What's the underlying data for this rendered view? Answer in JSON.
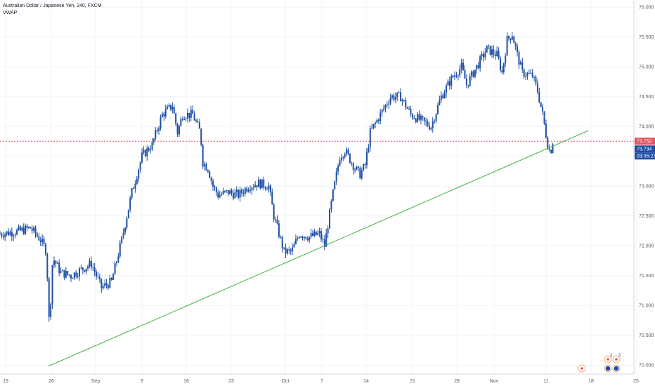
{
  "header": {
    "symbol_title": "Australian Dollar / Japanese Yen, 240, FXCM",
    "indicator": "VWAP"
  },
  "colors": {
    "candle": "#1e4fa3",
    "trendline": "#3fae3f",
    "price_line": "#e05560",
    "badge_red": "#e05560",
    "badge_blue": "#1e4fa3",
    "grid": "#f0f3fa",
    "axis_text": "#555a66"
  },
  "price_badges": {
    "last_price": "73.752",
    "vwap": "73.734",
    "countdown": "03:35:27"
  },
  "events": {
    "icons": [
      "flag-event-icon",
      "flag-event-icon",
      "flag-event-icon",
      "globe-event-icon",
      "globe-event-icon"
    ],
    "counts": [
      "3",
      "3"
    ]
  },
  "chart_data": {
    "type": "candlestick",
    "title": "Australian Dollar / Japanese Yen, 240, FXCM",
    "y_ticks": [
      "76.000",
      "75.500",
      "75.000",
      "74.500",
      "74.000",
      "73.500",
      "73.000",
      "72.500",
      "72.000",
      "71.500",
      "71.000",
      "70.500",
      "70.000"
    ],
    "ylim": [
      69.85,
      76.12
    ],
    "x_ticks": [
      "19",
      "26",
      "Sep",
      "9",
      "16",
      "23",
      "Oct",
      "7",
      "14",
      "21",
      "28",
      "Nov",
      "11",
      "18",
      "25"
    ],
    "series": [
      {
        "name": "AUDJPY",
        "price_path": [
          {
            "x": 0,
            "y": 72.2
          },
          {
            "x": 4,
            "y": 72.25
          },
          {
            "x": 6,
            "y": 72.3
          },
          {
            "x": 8,
            "y": 72.1
          },
          {
            "x": 9.2,
            "y": 71.9
          },
          {
            "x": 9.6,
            "y": 70.7
          },
          {
            "x": 10,
            "y": 71.1
          },
          {
            "x": 10.4,
            "y": 71.8
          },
          {
            "x": 12,
            "y": 71.55
          },
          {
            "x": 14,
            "y": 71.5
          },
          {
            "x": 16,
            "y": 71.6
          },
          {
            "x": 18,
            "y": 71.7
          },
          {
            "x": 20,
            "y": 71.3
          },
          {
            "x": 22,
            "y": 71.4
          },
          {
            "x": 24,
            "y": 72.1
          },
          {
            "x": 26,
            "y": 72.9
          },
          {
            "x": 28,
            "y": 73.5
          },
          {
            "x": 30,
            "y": 73.7
          },
          {
            "x": 32,
            "y": 74.2
          },
          {
            "x": 34,
            "y": 74.35
          },
          {
            "x": 35,
            "y": 73.9
          },
          {
            "x": 36,
            "y": 74.2
          },
          {
            "x": 38,
            "y": 74.2
          },
          {
            "x": 39.5,
            "y": 73.9
          },
          {
            "x": 40,
            "y": 73.4
          },
          {
            "x": 41,
            "y": 73.3
          },
          {
            "x": 42,
            "y": 73.0
          },
          {
            "x": 43,
            "y": 72.85
          },
          {
            "x": 45,
            "y": 72.9
          },
          {
            "x": 47,
            "y": 72.85
          },
          {
            "x": 49,
            "y": 73.0
          },
          {
            "x": 51,
            "y": 73.05
          },
          {
            "x": 53,
            "y": 73.0
          },
          {
            "x": 54,
            "y": 72.5
          },
          {
            "x": 55,
            "y": 72.2
          },
          {
            "x": 56,
            "y": 71.9
          },
          {
            "x": 57.5,
            "y": 71.9
          },
          {
            "x": 59,
            "y": 72.2
          },
          {
            "x": 61,
            "y": 72.15
          },
          {
            "x": 63,
            "y": 72.2
          },
          {
            "x": 64,
            "y": 72.0
          },
          {
            "x": 65.5,
            "y": 72.8
          },
          {
            "x": 67,
            "y": 73.5
          },
          {
            "x": 68,
            "y": 73.6
          },
          {
            "x": 70,
            "y": 73.3
          },
          {
            "x": 71,
            "y": 73.2
          },
          {
            "x": 72,
            "y": 73.35
          },
          {
            "x": 73,
            "y": 73.9
          },
          {
            "x": 75,
            "y": 74.2
          },
          {
            "x": 77,
            "y": 74.5
          },
          {
            "x": 79,
            "y": 74.5
          },
          {
            "x": 81,
            "y": 74.2
          },
          {
            "x": 83,
            "y": 74.1
          },
          {
            "x": 85,
            "y": 74.0
          },
          {
            "x": 87,
            "y": 74.5
          },
          {
            "x": 89,
            "y": 74.8
          },
          {
            "x": 91,
            "y": 75.0
          },
          {
            "x": 92,
            "y": 74.7
          },
          {
            "x": 94,
            "y": 75.0
          },
          {
            "x": 96,
            "y": 75.3
          },
          {
            "x": 98,
            "y": 75.2
          },
          {
            "x": 99,
            "y": 74.9
          },
          {
            "x": 100,
            "y": 75.45
          },
          {
            "x": 101,
            "y": 75.55
          },
          {
            "x": 102,
            "y": 75.2
          },
          {
            "x": 103,
            "y": 74.9
          },
          {
            "x": 105,
            "y": 74.85
          },
          {
            "x": 106,
            "y": 74.6
          },
          {
            "x": 107,
            "y": 74.2
          },
          {
            "x": 108,
            "y": 73.7
          },
          {
            "x": 108.5,
            "y": 73.55
          },
          {
            "x": 109,
            "y": 73.75
          }
        ]
      }
    ],
    "trendline": {
      "from": {
        "x": 9.5,
        "y": 69.98
      },
      "to": {
        "x": 116,
        "y": 73.93
      }
    },
    "price_line": 73.752,
    "grid": true
  }
}
